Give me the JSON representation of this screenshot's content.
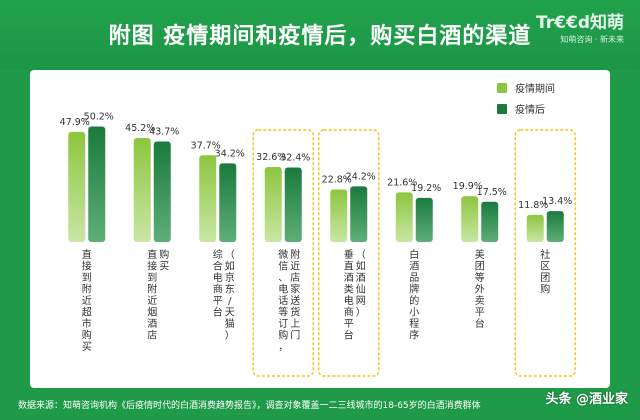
{
  "header": {
    "title": "附图  疫情期间和疫情后，购买白酒的渠道",
    "logo_text": "Tr€€d知萌",
    "logo_tagline": "知萌咨询 · 新未来"
  },
  "chart_data": {
    "type": "bar",
    "title": "附图  疫情期间和疫情后，购买白酒的渠道",
    "xlabel": "",
    "ylabel": "",
    "ylim": [
      0,
      60
    ],
    "grid": false,
    "legend_position": "top-right",
    "categories": [
      "直接到附近超市购买",
      "直接到附近烟酒店购买",
      "综合电商平台（如京东/天猫）",
      "微信、电话等订购，附近店家送货上门",
      "垂直酒类电商平台（如酒仙网）",
      "白酒品牌的小程序",
      "美团等外卖平台",
      "社区团购"
    ],
    "category_lines": [
      [
        "直接到附近超市购买"
      ],
      [
        "直接到附近烟酒店",
        "购买"
      ],
      [
        "综合电商平台",
        "（如京东/天猫）"
      ],
      [
        "微信、电话等订购，",
        "附近店家送货上门"
      ],
      [
        "垂直酒类电商平台",
        "（如酒仙网）"
      ],
      [
        "白酒品牌的小程序"
      ],
      [
        "美团等外卖平台"
      ],
      [
        "社区团购"
      ]
    ],
    "highlighted_categories": [
      3,
      4,
      7
    ],
    "series": [
      {
        "name": "疫情期间",
        "values": [
          47.9,
          45.2,
          37.7,
          32.6,
          22.8,
          21.6,
          19.9,
          11.8
        ],
        "labels": [
          "47.9%",
          "45.2%",
          "37.7%",
          "32.6%",
          "22.8%",
          "21.6%",
          "19.9%",
          "11.8%"
        ]
      },
      {
        "name": "疫情后",
        "values": [
          50.2,
          43.7,
          34.2,
          32.4,
          24.2,
          19.2,
          17.5,
          13.4
        ],
        "labels": [
          "50.2%",
          "43.7%",
          "34.2%",
          "32.4%",
          "24.2%",
          "19.2%",
          "17.5%",
          "13.4%"
        ]
      }
    ]
  },
  "colors": {
    "series_during": "#8dc63f",
    "series_after": "#1a7a3c",
    "highlight_box": "#f0c419",
    "page_background": "#1f9a48"
  },
  "footer": {
    "source": "数据来源：知萌咨询机构《后疫情时代的白酒消费趋势报告》，调查对象覆盖一二三线城市的18-65岁的白酒消费群体"
  },
  "watermark": {
    "text": "头条 @酒业家"
  }
}
